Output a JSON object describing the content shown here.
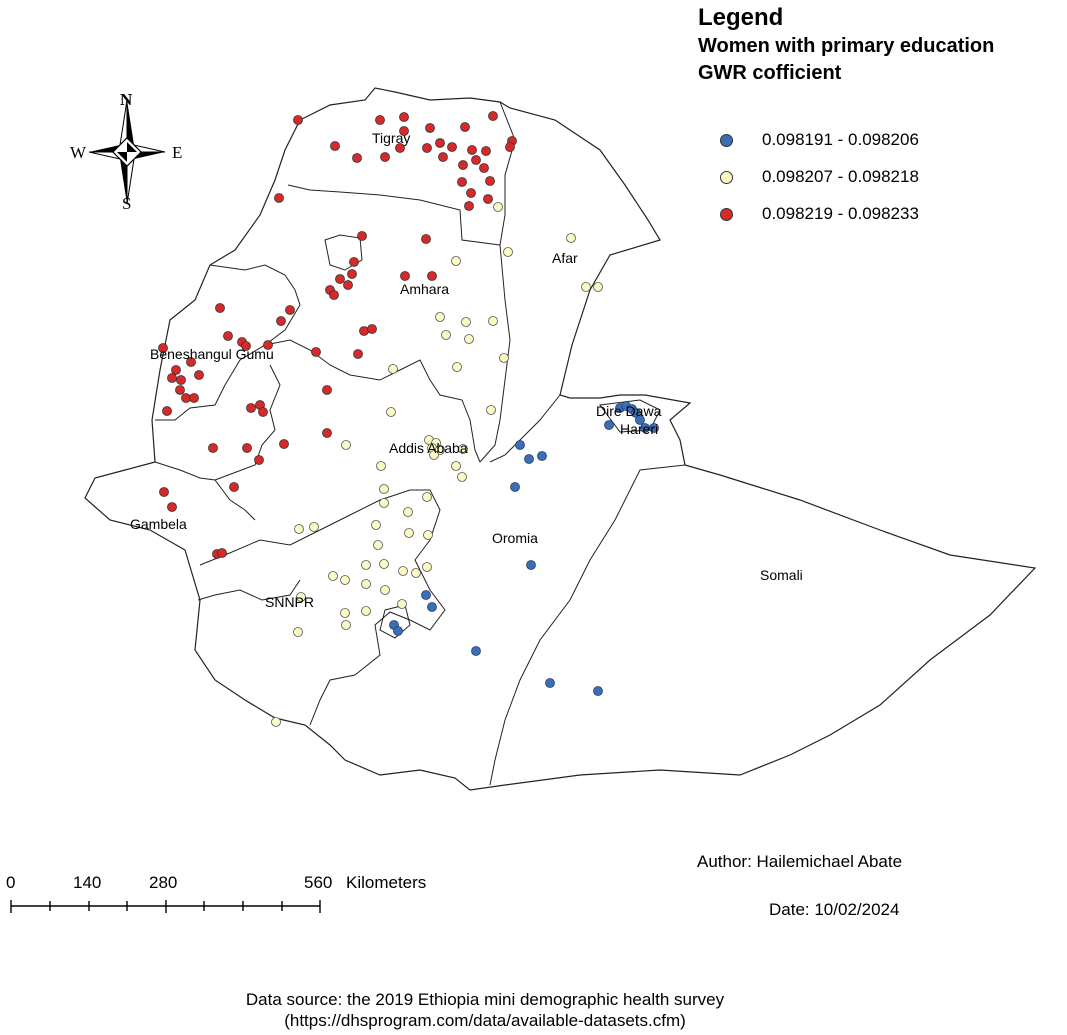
{
  "legend": {
    "title": "Legend",
    "subtitle_line1": "Women with primary education",
    "subtitle_line2": "GWR cofficient",
    "classes": [
      {
        "label": "0.098191 - 0.098206",
        "color": "#3a6fb5"
      },
      {
        "label": "0.098207 - 0.098218",
        "color": "#fbf9c4"
      },
      {
        "label": "0.098219 - 0.098233",
        "color": "#d62a2a"
      }
    ]
  },
  "compass": {
    "n": "N",
    "s": "S",
    "e": "E",
    "w": "W"
  },
  "regions": {
    "tigray": "Tigray",
    "afar": "Afar",
    "amhara": "Amhara",
    "benishangul": "Beneshangul Gumu",
    "dire_dawa": "Dire Dawa",
    "harari": "Hareri",
    "addis_ababa": "Addis Ababa",
    "gambela": "Gambela",
    "oromia": "Oromia",
    "somali": "Somali",
    "snnpr": "SNNPR"
  },
  "scale_bar": {
    "ticks": [
      "0",
      "140",
      "280",
      "560"
    ],
    "unit": "Kilometers"
  },
  "author": "Author: Hailemichael Abate",
  "date": "Date: 10/02/2024",
  "data_source_line1": "Data source: the 2019 Ethiopia mini demographic health survey",
  "data_source_line2": "(https://dhsprogram.com/data/available-datasets.cfm)"
}
